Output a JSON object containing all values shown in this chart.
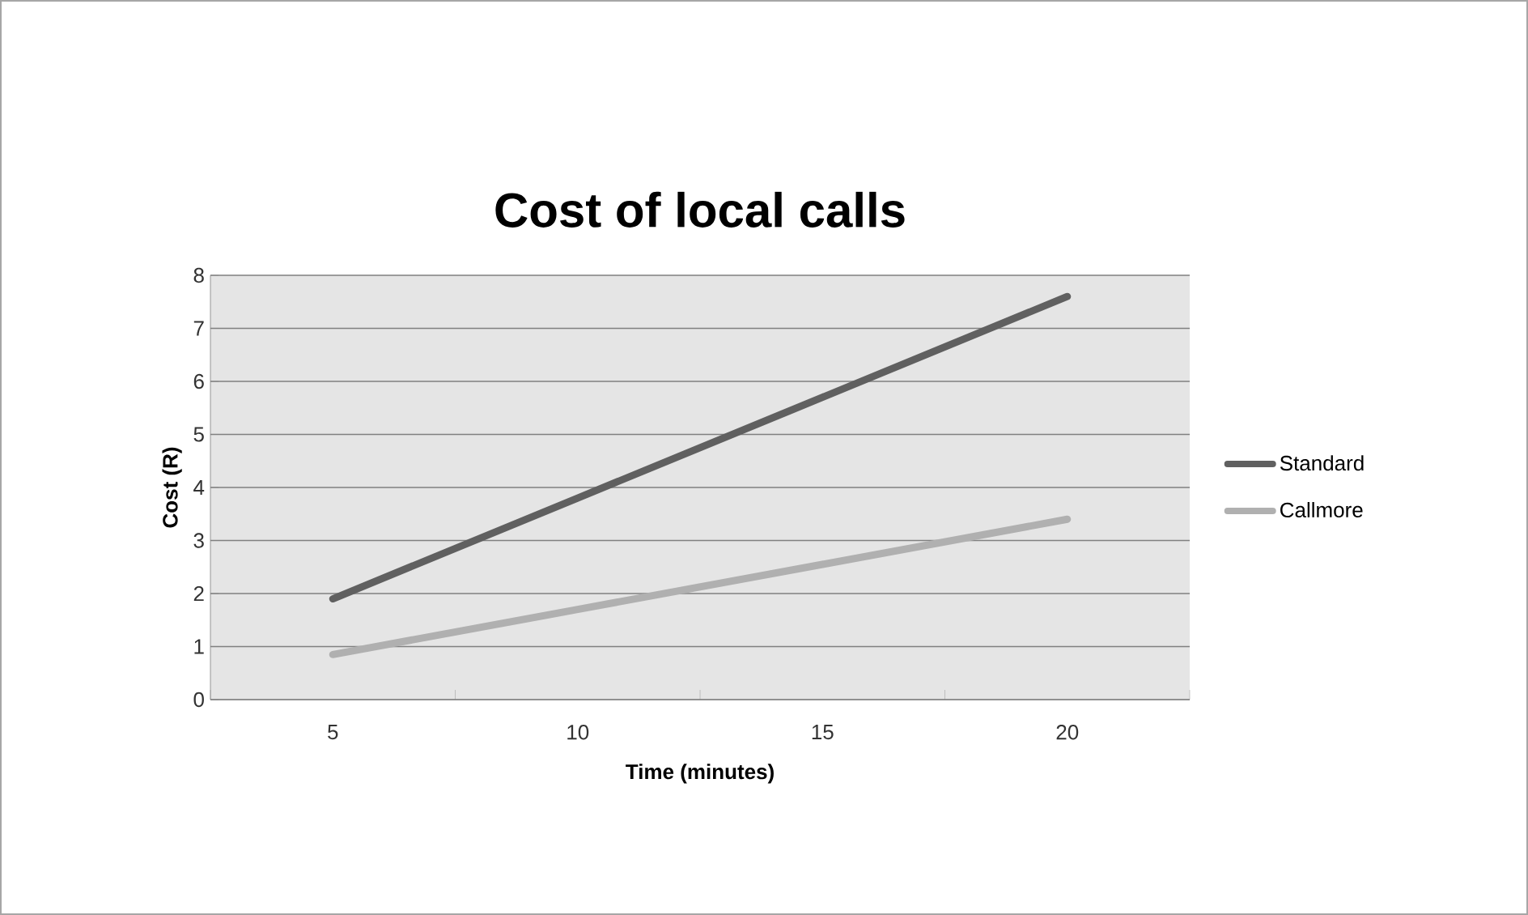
{
  "chart_data": {
    "type": "line",
    "title": "Cost of local calls",
    "xlabel": "Time (minutes)",
    "ylabel": "Cost (R)",
    "categories": [
      "5",
      "10",
      "15",
      "20"
    ],
    "series": [
      {
        "name": "Standard",
        "color": "#606060",
        "values": [
          1.9,
          3.8,
          5.7,
          7.6
        ]
      },
      {
        "name": "Callmore",
        "color": "#b0b0b0",
        "values": [
          0.85,
          1.7,
          2.55,
          3.4
        ]
      }
    ],
    "ylim": [
      0,
      8
    ],
    "yticks": [
      0,
      1,
      2,
      3,
      4,
      5,
      6,
      7,
      8
    ],
    "grid": "y",
    "legend": "right",
    "marker": "none",
    "line_style": "solid"
  }
}
